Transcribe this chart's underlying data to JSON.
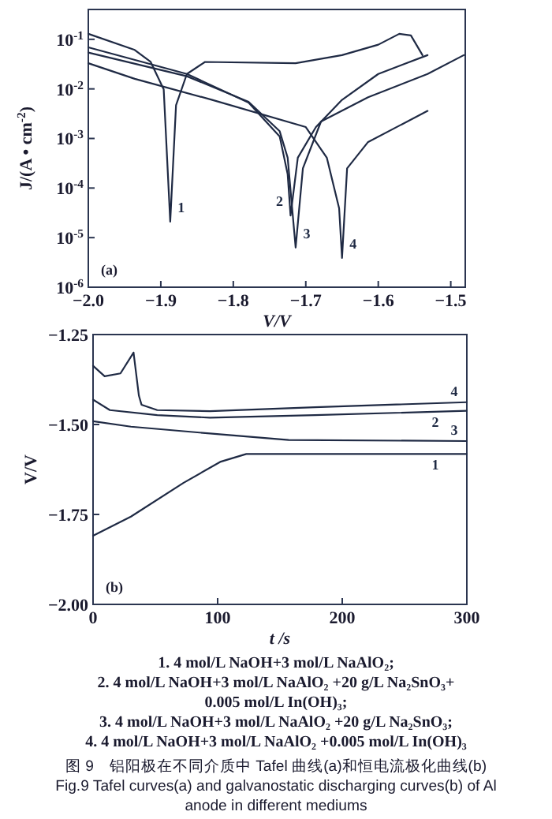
{
  "chart_data": [
    {
      "type": "line",
      "xlabel": "V/V",
      "ylabel": "J/(A • cm$^{-2}$)",
      "log": "y",
      "xlim": [
        -2.0,
        -1.48
      ],
      "ylim": [
        1e-06,
        0.4
      ],
      "xticks": [
        {
          "value": -2.0,
          "label": "−2.0"
        },
        -1.9,
        -1.8,
        -1.7,
        -1.6,
        -1.5
      ],
      "yticks": [
        {
          "value": 0.1,
          "label": "10$^{-1}$"
        },
        {
          "value": 0.01,
          "label": "10$^{-2}$"
        },
        {
          "value": 0.001,
          "label": "10$^{-3}$"
        },
        {
          "value": 0.0001,
          "label": "10$^{-4}$"
        },
        {
          "value": 1e-05,
          "label": "10$^{-5}$"
        },
        {
          "value": 1e-06,
          "label": "10$^{-6}$"
        }
      ],
      "grid": false,
      "marker": "none",
      "line_style": "solid",
      "series": [
        {
          "name": "1",
          "color": "#1f2a44",
          "x": [
            -2.0,
            -1.936,
            -1.914,
            -1.896,
            -1.887,
            -1.879,
            -1.864,
            -1.839,
            -1.714,
            -1.65,
            -1.6,
            -1.571,
            -1.555,
            -1.539
          ],
          "values": [
            0.129,
            0.061,
            0.035,
            0.0098,
            2.1e-05,
            0.0047,
            0.02,
            0.035,
            0.033,
            0.048,
            0.078,
            0.129,
            0.12,
            0.048
          ]
        },
        {
          "name": "2",
          "color": "#1f2a44",
          "x": [
            -2.0,
            -1.864,
            -1.779,
            -1.736,
            -1.725,
            -1.721,
            -1.711,
            -1.686,
            -1.65,
            -1.6,
            -1.532
          ],
          "values": [
            0.069,
            0.02,
            0.0053,
            0.0011,
            0.00019,
            2.8e-05,
            0.00041,
            0.0017,
            0.006,
            0.02,
            0.048
          ]
        },
        {
          "name": "3",
          "color": "#1f2a44",
          "x": [
            -2.0,
            -1.864,
            -1.779,
            -1.736,
            -1.725,
            -1.714,
            -1.704,
            -1.679,
            -1.614,
            -1.532,
            -1.482
          ],
          "values": [
            0.054,
            0.018,
            0.0055,
            0.0014,
            0.00041,
            6.3e-06,
            0.00025,
            0.0022,
            0.0068,
            0.02,
            0.048
          ]
        },
        {
          "name": "4",
          "color": "#1f2a44",
          "x": [
            -2.0,
            -1.936,
            -1.829,
            -1.7,
            -1.671,
            -1.654,
            -1.65,
            -1.643,
            -1.614,
            -1.532
          ],
          "values": [
            0.033,
            0.016,
            0.006,
            0.0017,
            0.00041,
            3.9e-05,
            3.9e-06,
            0.00025,
            0.00085,
            0.0036
          ]
        }
      ],
      "annotations": [
        "(a)"
      ]
    },
    {
      "type": "line",
      "xlabel": "t /s",
      "ylabel": "V/V",
      "xlim": [
        0,
        300
      ],
      "ylim": [
        -2.0,
        -1.25
      ],
      "xticks": [
        0,
        100,
        200,
        300
      ],
      "yticks": [
        {
          "value": -2.0,
          "label": "−2.00"
        },
        -1.75,
        {
          "value": -1.5,
          "label": "−1.50"
        },
        -1.25
      ],
      "grid": false,
      "marker": "none",
      "line_style": "solid",
      "series": [
        {
          "name": "1",
          "color": "#1f2a44",
          "x": [
            0,
            30.4,
            72.7,
            102,
            123,
            178,
            300
          ],
          "values": [
            -1.809,
            -1.756,
            -1.662,
            -1.604,
            -1.582,
            -1.582,
            -1.582
          ]
        },
        {
          "name": "2",
          "color": "#1f2a44",
          "x": [
            0,
            13.5,
            51.5,
            93.8,
            178,
            300
          ],
          "values": [
            -1.431,
            -1.46,
            -1.474,
            -1.481,
            -1.474,
            -1.462
          ]
        },
        {
          "name": "3",
          "color": "#1f2a44",
          "x": [
            0,
            30.4,
            93.8,
            157,
            300
          ],
          "values": [
            -1.491,
            -1.506,
            -1.525,
            -1.543,
            -1.546
          ]
        },
        {
          "name": "4",
          "color": "#1f2a44",
          "x": [
            0,
            9.3,
            22,
            32.5,
            36.8,
            38.9,
            51.5,
            93.8,
            178,
            300
          ],
          "values": [
            -1.337,
            -1.366,
            -1.358,
            -1.3,
            -1.42,
            -1.445,
            -1.46,
            -1.463,
            -1.452,
            -1.438
          ]
        }
      ],
      "annotations": [
        "(b)",
        "1. 4 mol/L NaOH+3 mol/L NaAlO₂;",
        "2. 4 mol/L NaOH+3 mol/L NaAlO₂ +20 g/L Na₂SnO₃+",
        "0.005 mol/L In(OH)₃;",
        "3. 4 mol/L NaOH+3 mol/L NaAlO₂ +20 g/L Na₂SnO₃;",
        "4. 4 mol/L NaOH+3 mol/L NaAlO₂ +0.005 mol/L In(OH)₃",
        "图 9　铝阳极在不同介质中 Tafel 曲线(a)和恒电流极化曲线(b)",
        "Fig.9  Tafel curves(a) and galvanostatic discharging curves(b) of Al",
        "anode in different mediums"
      ]
    }
  ]
}
